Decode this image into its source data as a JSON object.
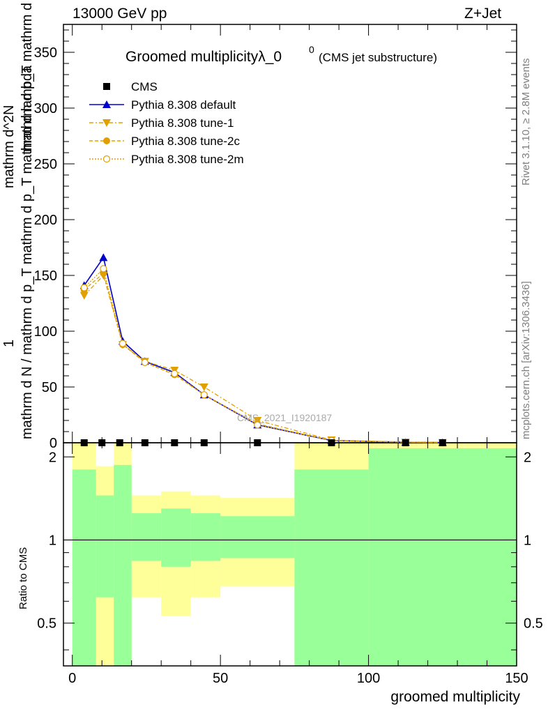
{
  "header": {
    "left": "13000 GeV pp",
    "right": "Z+Jet"
  },
  "side_text": {
    "top": "Rivet 3.1.10, ≥ 2.8M events",
    "bottom": "mcplots.cern.ch [arXiv:1306.3436]"
  },
  "watermark": "CMS_2021_I1920187",
  "y_label": {
    "numerator": "1",
    "denominator": "mathrm d N / mathrm d p_T mathrm d p_T mathrm d lambda",
    "top": "mathrm d^2N",
    "line2": "mathrm d p_T mathrm d lambda"
  },
  "chart_data": [
    {
      "type": "line",
      "title": "Groomed multiplicityλ_0",
      "title_superscript": "0",
      "subtitle": "(CMS jet substructure)",
      "xlim": [
        -3,
        150
      ],
      "ylim": [
        0,
        375
      ],
      "yticks": [
        0,
        50,
        100,
        150,
        200,
        250,
        300,
        350
      ],
      "legend_position": "top-left",
      "series": [
        {
          "name": "CMS",
          "color": "#000000",
          "marker": "square",
          "x": [
            4,
            10,
            16,
            24.5,
            34.5,
            44.5,
            62.5,
            87.5,
            112.5,
            125
          ],
          "y": [
            0,
            0,
            0,
            0,
            0,
            0,
            0,
            0,
            0,
            0
          ]
        },
        {
          "name": "Pythia 8.308 default",
          "color": "#0000cc",
          "marker": "triangle-up",
          "dash": "solid",
          "x": [
            4,
            10.5,
            17,
            24.5,
            34.5,
            44.5,
            62.5,
            87.5,
            112.5,
            125
          ],
          "y": [
            141,
            166,
            91,
            73,
            63,
            43,
            16,
            2,
            0.5,
            0.2
          ]
        },
        {
          "name": "Pythia 8.308 tune-1",
          "color": "#e0a000",
          "marker": "triangle-down",
          "dash": "6,3,2,3",
          "x": [
            4,
            10.5,
            17,
            24.5,
            34.5,
            44.5,
            62.5,
            87.5,
            112.5,
            125
          ],
          "y": [
            132,
            150,
            88,
            73,
            65,
            50,
            20,
            2.5,
            0.6,
            0.2
          ]
        },
        {
          "name": "Pythia 8.308 tune-2c",
          "color": "#e0a000",
          "marker": "circle",
          "dash": "5,3",
          "x": [
            4,
            10.5,
            17,
            24.5,
            34.5,
            44.5,
            62.5,
            87.5,
            112.5,
            125
          ],
          "y": [
            137,
            152,
            88,
            72,
            61,
            43,
            17,
            2,
            0.5,
            0.2
          ]
        },
        {
          "name": "Pythia 8.308 tune-2m",
          "color": "#e0a000",
          "marker": "circle-open",
          "dash": "2,2",
          "x": [
            4,
            10.5,
            17,
            24.5,
            34.5,
            44.5,
            62.5,
            87.5,
            112.5,
            125
          ],
          "y": [
            139,
            156,
            89,
            72,
            62,
            43,
            16,
            2,
            0.5,
            0.2
          ]
        }
      ]
    },
    {
      "type": "area",
      "ylabel": "Ratio to CMS",
      "xlabel": "groomed multiplicity",
      "xlim": [
        -3,
        150
      ],
      "ylim": [
        0.35,
        2.25
      ],
      "yticks": [
        0.5,
        1,
        2
      ],
      "xticks": [
        0,
        50,
        100,
        150
      ],
      "reference_line": 1,
      "band_colors": {
        "outer": "#ffff99",
        "inner": "#99ff99"
      },
      "bins": [
        {
          "x0": 0,
          "x1": 8,
          "outer": [
            0.35,
            2.25
          ],
          "inner": [
            0.35,
            1.8
          ]
        },
        {
          "x0": 8,
          "x1": 14,
          "outer": [
            0.35,
            1.85
          ],
          "inner": [
            0.62,
            1.45
          ]
        },
        {
          "x0": 14,
          "x1": 20,
          "outer": [
            0.35,
            2.25
          ],
          "inner": [
            0.35,
            1.87
          ]
        },
        {
          "x0": 20,
          "x1": 30,
          "outer": [
            0.62,
            1.45
          ],
          "inner": [
            0.84,
            1.25
          ]
        },
        {
          "x0": 30,
          "x1": 40,
          "outer": [
            0.53,
            1.5
          ],
          "inner": [
            0.8,
            1.3
          ]
        },
        {
          "x0": 40,
          "x1": 50,
          "outer": [
            0.62,
            1.45
          ],
          "inner": [
            0.84,
            1.25
          ]
        },
        {
          "x0": 50,
          "x1": 75,
          "outer": [
            0.68,
            1.42
          ],
          "inner": [
            0.86,
            1.22
          ]
        },
        {
          "x0": 75,
          "x1": 100,
          "outer": [
            0.35,
            2.25
          ],
          "inner": [
            0.35,
            1.8
          ]
        },
        {
          "x0": 100,
          "x1": 150,
          "outer": [
            0.35,
            2.25
          ],
          "inner": [
            0.35,
            2.15
          ]
        }
      ]
    }
  ]
}
